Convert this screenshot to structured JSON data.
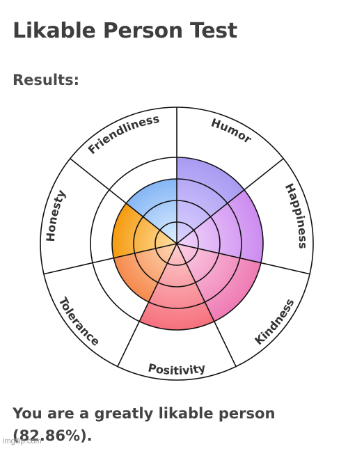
{
  "page": {
    "title": "Likable Person Test",
    "results_label": "Results:",
    "result_text": "You are a greatly likable person (82.86%).",
    "watermark": "imgflip.com"
  },
  "chart_data": {
    "type": "polar-area",
    "title": "",
    "categories": [
      "Humor",
      "Happiness",
      "Kindness",
      "Positivity",
      "Tolerance",
      "Honesty",
      "Friendliness"
    ],
    "values": [
      4,
      4,
      4,
      4,
      3,
      3,
      3
    ],
    "max": 4,
    "rings": 4,
    "colors": {
      "Humor": [
        "#dcd3ff",
        "#a99af2"
      ],
      "Happiness": [
        "#f2d6fb",
        "#cc8cf0"
      ],
      "Kindness": [
        "#fbd1e6",
        "#ef7bb4"
      ],
      "Positivity": [
        "#fdd0d0",
        "#f6707d"
      ],
      "Tolerance": [
        "#ffd9b8",
        "#f58a4d"
      ],
      "Honesty": [
        "#ffe0a6",
        "#f59b0f"
      ],
      "Friendliness": [
        "#dff0ff",
        "#86b6f5"
      ]
    }
  }
}
